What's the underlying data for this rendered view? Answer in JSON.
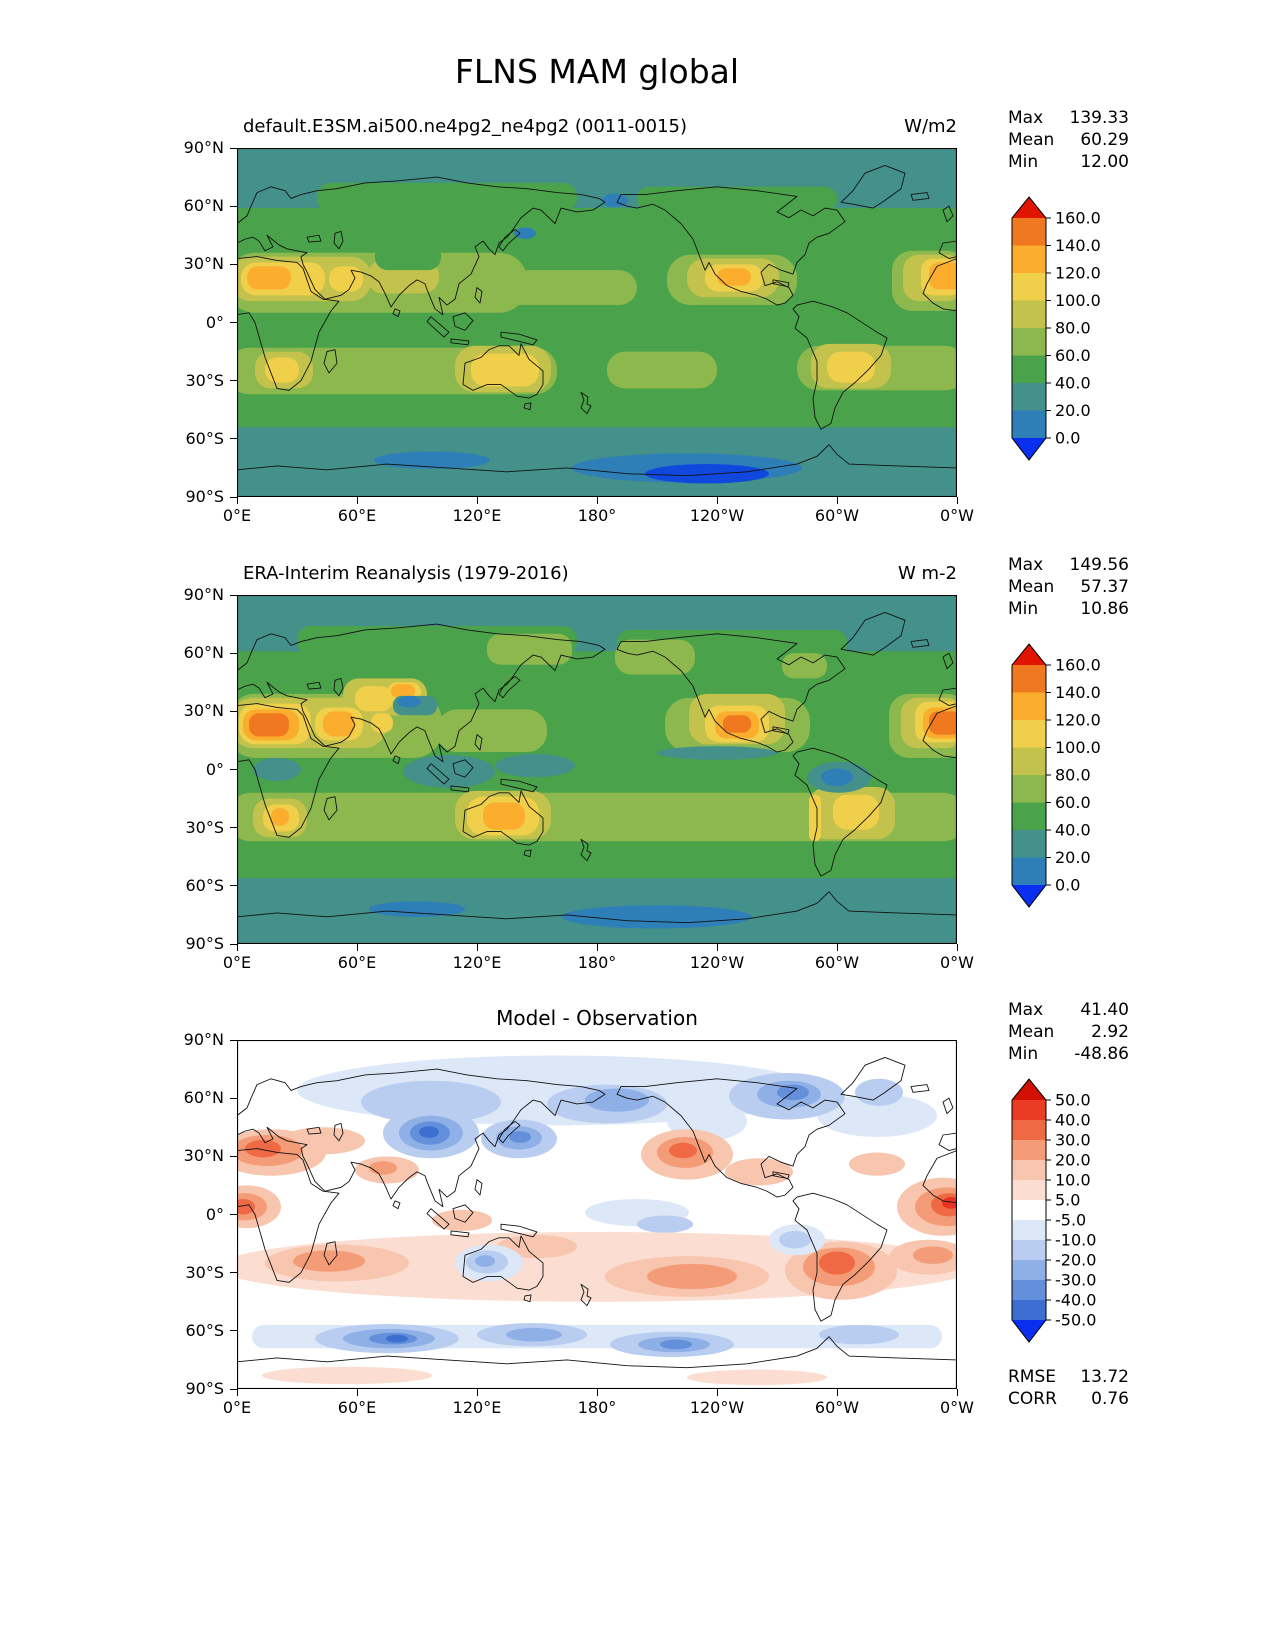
{
  "figure": {
    "title": "FLNS MAM global"
  },
  "axes": {
    "lat_ticks": [
      "90°N",
      "60°N",
      "30°N",
      "0°",
      "30°S",
      "60°S",
      "90°S"
    ],
    "lon_ticks": [
      "0°E",
      "60°E",
      "120°E",
      "180°",
      "120°W",
      "60°W",
      "0°W"
    ]
  },
  "panels": [
    {
      "title": "default.E3SM.ai500.ne4pg2_ne4pg2 (0011-0015)",
      "units": "W/m2",
      "stats": [
        {
          "label": "Max",
          "value": "139.33"
        },
        {
          "label": "Mean",
          "value": "60.29"
        },
        {
          "label": "Min",
          "value": "12.00"
        }
      ],
      "colorbar": {
        "tick_labels": [
          "160.0",
          "140.0",
          "120.0",
          "100.0",
          "80.0",
          "60.0",
          "40.0",
          "20.0",
          "0.0"
        ],
        "cell_colors_top_to_bottom": [
          "#f07820",
          "#fbae2e",
          "#f0cf4a",
          "#c2c24d",
          "#8db84e",
          "#4aa34a",
          "#44908a",
          "#2e7fb8"
        ],
        "arrow_top": "#e11400",
        "arrow_bottom": "#0a2ff0"
      }
    },
    {
      "title": "ERA-Interim Reanalysis (1979-2016)",
      "units": "W m-2",
      "stats": [
        {
          "label": "Max",
          "value": "149.56"
        },
        {
          "label": "Mean",
          "value": "57.37"
        },
        {
          "label": "Min",
          "value": "10.86"
        }
      ],
      "colorbar": {
        "tick_labels": [
          "160.0",
          "140.0",
          "120.0",
          "100.0",
          "80.0",
          "60.0",
          "40.0",
          "20.0",
          "0.0"
        ],
        "cell_colors_top_to_bottom": [
          "#f07820",
          "#fbae2e",
          "#f0cf4a",
          "#c2c24d",
          "#8db84e",
          "#4aa34a",
          "#44908a",
          "#2e7fb8"
        ],
        "arrow_top": "#e11400",
        "arrow_bottom": "#0a2ff0"
      }
    },
    {
      "title": "Model - Observation",
      "units": "",
      "stats": [
        {
          "label": "Max",
          "value": "41.40"
        },
        {
          "label": "Mean",
          "value": "2.92"
        },
        {
          "label": "Min",
          "value": "-48.86"
        }
      ],
      "colorbar": {
        "tick_labels": [
          "50.0",
          "40.0",
          "30.0",
          "20.0",
          "10.0",
          "5.0",
          "-5.0",
          "-10.0",
          "-20.0",
          "-30.0",
          "-40.0",
          "-50.0"
        ],
        "cell_colors_top_to_bottom": [
          "#ea3b24",
          "#ef6a44",
          "#f49c77",
          "#f8c5ae",
          "#fbded1",
          "#ffffff",
          "#dce8f8",
          "#b9cdf0",
          "#8fb0e6",
          "#6490db",
          "#3c6fd1"
        ],
        "arrow_top": "#d20f00",
        "arrow_bottom": "#0a2ff0"
      },
      "footer_stats": [
        {
          "label": "RMSE",
          "value": "13.72"
        },
        {
          "label": "CORR",
          "value": "0.76"
        }
      ]
    }
  ],
  "chart_data": {
    "type": "heatmap",
    "title": "FLNS MAM global",
    "variable": "FLNS",
    "season": "MAM",
    "region": "global",
    "projection": "latitude-longitude",
    "lon_ticks": [
      "0°E",
      "60°E",
      "120°E",
      "180°",
      "120°W",
      "60°W",
      "0°W"
    ],
    "lat_ticks": [
      "90°N",
      "60°N",
      "30°N",
      "0°",
      "30°S",
      "60°S",
      "90°S"
    ],
    "panels": [
      {
        "name": "default.E3SM.ai500.ne4pg2_ne4pg2 (0011-0015)",
        "units": "W/m2",
        "contour_levels": [
          0,
          20,
          40,
          60,
          80,
          100,
          120,
          140,
          160
        ],
        "max": 139.33,
        "mean": 60.29,
        "min": 12.0
      },
      {
        "name": "ERA-Interim Reanalysis (1979-2016)",
        "units": "W m-2",
        "contour_levels": [
          0,
          20,
          40,
          60,
          80,
          100,
          120,
          140,
          160
        ],
        "max": 149.56,
        "mean": 57.37,
        "min": 10.86
      },
      {
        "name": "Model - Observation",
        "contour_levels": [
          -50,
          -40,
          -30,
          -20,
          -10,
          -5,
          5,
          10,
          20,
          30,
          40,
          50
        ],
        "max": 41.4,
        "mean": 2.92,
        "min": -48.86,
        "rmse": 13.72,
        "corr": 0.76
      }
    ]
  }
}
